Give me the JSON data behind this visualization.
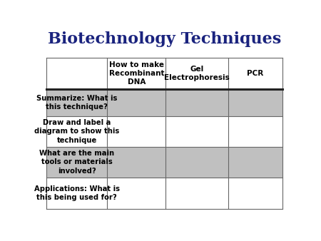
{
  "title": "Biotechnology Techniques",
  "title_color": "#1a237e",
  "title_fontsize": 16,
  "title_fontstyle": "bold",
  "title_fontfamily": "DejaVu Serif",
  "col_headers": [
    "How to make\nRecombinant\nDNA",
    "Gel\nElectrophoresis",
    "PCR"
  ],
  "row_headers": [
    "Summarize: What is\nthis technique?",
    "Draw and label a\ndiagram to show this\ntechnique",
    "What are the main\ntools or materials\ninvolved?",
    "Applications: What is\nthis being used for?"
  ],
  "header_bg": "#ffffff",
  "border_color": "#666666",
  "thick_border_color": "#222222",
  "shaded_bg": "#c0c0c0",
  "white_bg": "#ffffff",
  "text_color": "#000000",
  "background_color": "#ffffff",
  "col_bounds": [
    0.025,
    0.27,
    0.505,
    0.755,
    0.975
  ],
  "row_bounds": [
    0.845,
    0.675,
    0.53,
    0.365,
    0.2,
    0.03
  ],
  "font_size_header_col": 7.5,
  "font_size_row": 7.2
}
